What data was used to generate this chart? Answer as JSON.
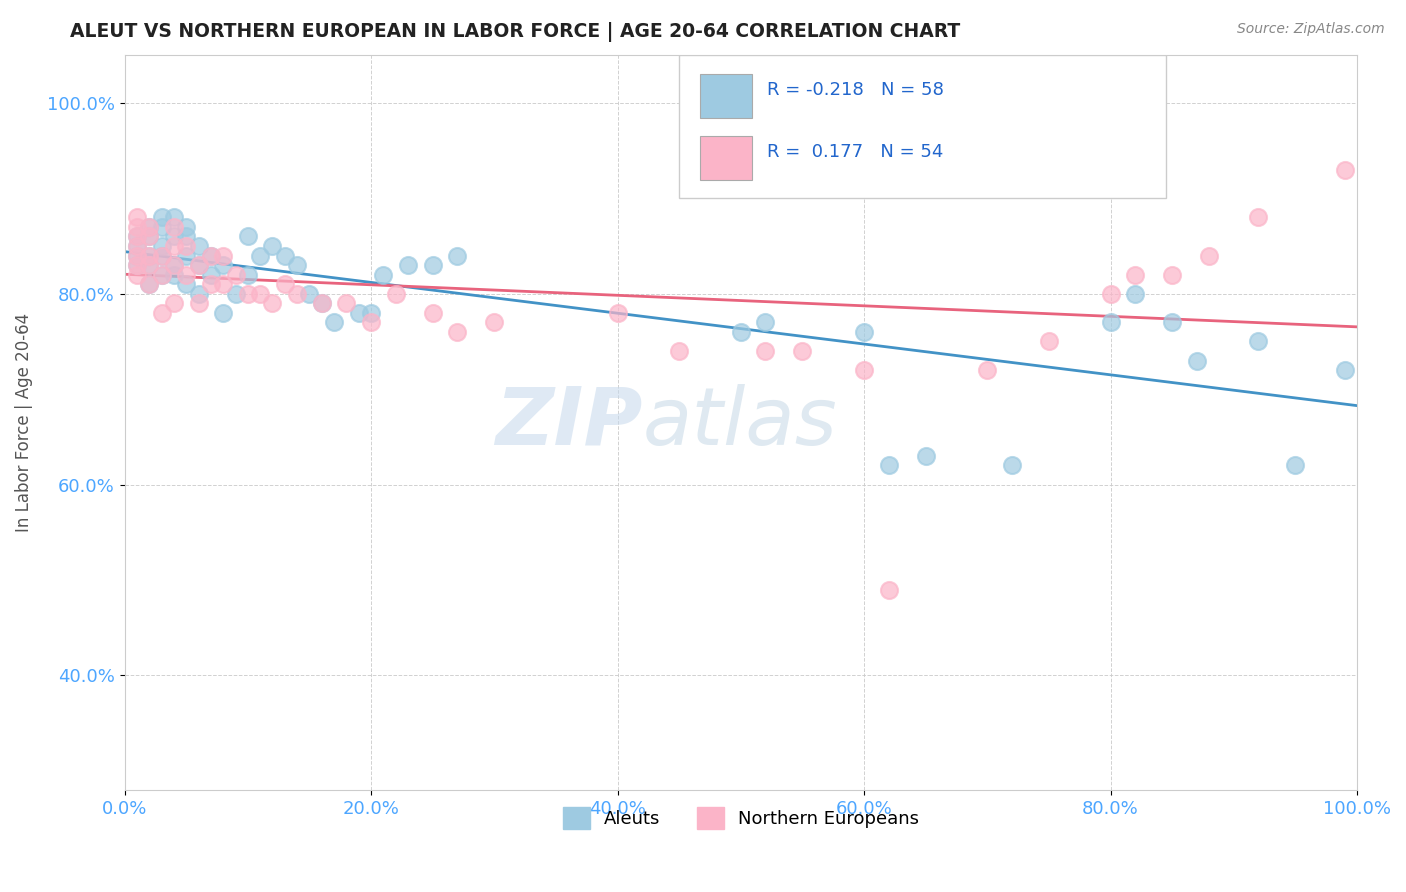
{
  "title": "ALEUT VS NORTHERN EUROPEAN IN LABOR FORCE | AGE 20-64 CORRELATION CHART",
  "source_text": "Source: ZipAtlas.com",
  "ylabel": "In Labor Force | Age 20-64",
  "xlim": [
    0.0,
    1.0
  ],
  "ylim": [
    0.28,
    1.05
  ],
  "x_ticks": [
    0.0,
    0.2,
    0.4,
    0.6,
    0.8,
    1.0
  ],
  "x_tick_labels": [
    "0.0%",
    "20.0%",
    "40.0%",
    "60.0%",
    "80.0%",
    "100.0%"
  ],
  "y_ticks": [
    0.4,
    0.6,
    0.8,
    1.0
  ],
  "y_tick_labels": [
    "40.0%",
    "60.0%",
    "80.0%",
    "100.0%"
  ],
  "aleut_color": "#9ecae1",
  "northern_color": "#fbb4c8",
  "aleut_line_color": "#4292c6",
  "northern_line_color": "#e8637d",
  "aleut_R": -0.218,
  "aleut_N": 58,
  "northern_R": 0.177,
  "northern_N": 54,
  "watermark_zip": "ZIP",
  "watermark_atlas": "atlas",
  "legend_label_aleut": "Aleuts",
  "legend_label_northern": "Northern Europeans",
  "aleut_x": [
    0.01,
    0.01,
    0.01,
    0.01,
    0.02,
    0.02,
    0.02,
    0.02,
    0.02,
    0.03,
    0.03,
    0.03,
    0.03,
    0.03,
    0.04,
    0.04,
    0.04,
    0.04,
    0.05,
    0.05,
    0.05,
    0.05,
    0.06,
    0.06,
    0.06,
    0.07,
    0.07,
    0.08,
    0.08,
    0.09,
    0.1,
    0.1,
    0.11,
    0.12,
    0.13,
    0.14,
    0.15,
    0.16,
    0.17,
    0.19,
    0.2,
    0.21,
    0.23,
    0.25,
    0.27,
    0.5,
    0.52,
    0.6,
    0.62,
    0.65,
    0.72,
    0.8,
    0.82,
    0.85,
    0.87,
    0.92,
    0.95,
    0.99
  ],
  "aleut_y": [
    0.83,
    0.84,
    0.85,
    0.86,
    0.81,
    0.83,
    0.84,
    0.86,
    0.87,
    0.82,
    0.84,
    0.85,
    0.87,
    0.88,
    0.82,
    0.83,
    0.86,
    0.88,
    0.81,
    0.84,
    0.86,
    0.87,
    0.8,
    0.83,
    0.85,
    0.82,
    0.84,
    0.78,
    0.83,
    0.8,
    0.82,
    0.86,
    0.84,
    0.85,
    0.84,
    0.83,
    0.8,
    0.79,
    0.77,
    0.78,
    0.78,
    0.82,
    0.83,
    0.83,
    0.84,
    0.76,
    0.77,
    0.76,
    0.62,
    0.63,
    0.62,
    0.77,
    0.8,
    0.77,
    0.73,
    0.75,
    0.62,
    0.72
  ],
  "northern_x": [
    0.01,
    0.01,
    0.01,
    0.01,
    0.01,
    0.01,
    0.01,
    0.02,
    0.02,
    0.02,
    0.02,
    0.02,
    0.03,
    0.03,
    0.03,
    0.04,
    0.04,
    0.04,
    0.04,
    0.05,
    0.05,
    0.06,
    0.06,
    0.07,
    0.07,
    0.08,
    0.08,
    0.09,
    0.1,
    0.11,
    0.12,
    0.13,
    0.14,
    0.16,
    0.18,
    0.2,
    0.22,
    0.25,
    0.27,
    0.3,
    0.4,
    0.45,
    0.52,
    0.55,
    0.6,
    0.62,
    0.7,
    0.75,
    0.8,
    0.82,
    0.85,
    0.88,
    0.92,
    0.99
  ],
  "northern_y": [
    0.82,
    0.83,
    0.84,
    0.85,
    0.86,
    0.87,
    0.88,
    0.81,
    0.83,
    0.84,
    0.86,
    0.87,
    0.78,
    0.82,
    0.84,
    0.79,
    0.83,
    0.85,
    0.87,
    0.82,
    0.85,
    0.79,
    0.83,
    0.81,
    0.84,
    0.81,
    0.84,
    0.82,
    0.8,
    0.8,
    0.79,
    0.81,
    0.8,
    0.79,
    0.79,
    0.77,
    0.8,
    0.78,
    0.76,
    0.77,
    0.78,
    0.74,
    0.74,
    0.74,
    0.72,
    0.49,
    0.72,
    0.75,
    0.8,
    0.82,
    0.82,
    0.84,
    0.88,
    0.93
  ]
}
